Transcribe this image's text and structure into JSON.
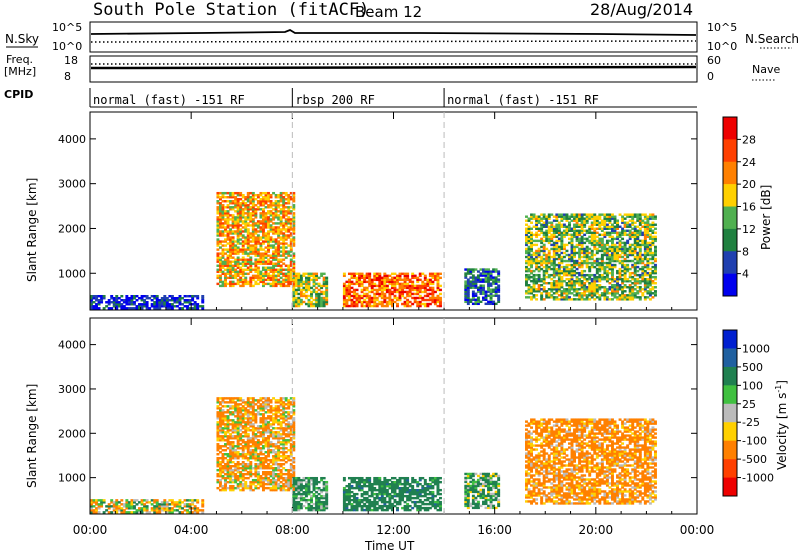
{
  "header": {
    "title": "South Pole Station (fitACF)",
    "beam": "Beam 12",
    "date": "28/Aug/2014"
  },
  "top_panels": {
    "nsky_label": "N.Sky",
    "nsearch_label": "N.Search",
    "nsky_ticks": [
      "10^5",
      "10^0"
    ],
    "nsearch_ticks": [
      "10^5",
      "10^0"
    ],
    "freq_label_1": "Freq.",
    "freq_label_2": "[MHz]",
    "freq_ticks": [
      "18",
      "8"
    ],
    "nave_label": "Nave",
    "nave_ticks": [
      "60",
      "0"
    ],
    "cpid_label": "CPID",
    "cpid_segments": [
      {
        "label": "normal (fast) -151 RF",
        "start_hour": 0,
        "end_hour": 8
      },
      {
        "label": "rbsp 200 RF",
        "start_hour": 8,
        "end_hour": 14
      },
      {
        "label": "normal (fast) -151 RF",
        "start_hour": 14,
        "end_hour": 24
      }
    ]
  },
  "power_panel": {
    "ylabel": "Slant Range [km]",
    "yticks": [
      "1000",
      "2000",
      "3000",
      "4000"
    ],
    "colorbar_label": "Power [dB]",
    "colorbar_ticks": [
      "4",
      "8",
      "12",
      "16",
      "20",
      "24",
      "28"
    ],
    "colors": [
      "#0000ee",
      "#2040b0",
      "#208040",
      "#50b050",
      "#ffd000",
      "#ff8000",
      "#ff4000",
      "#ee0000"
    ]
  },
  "velocity_panel": {
    "ylabel": "Slant Range [km]",
    "yticks": [
      "1000",
      "2000",
      "3000",
      "4000"
    ],
    "colorbar_label": "Velocity [m s",
    "colorbar_sup": "-1",
    "colorbar_label_end": "]",
    "colorbar_ticks": [
      "1000",
      "500",
      "100",
      "25",
      "-25",
      "-100",
      "-500",
      "-1000"
    ],
    "colors": [
      "#0020d0",
      "#2060a0",
      "#208050",
      "#40c040",
      "#bbbbbb",
      "#ffd000",
      "#ff8000",
      "#ff4000",
      "#ee0000"
    ]
  },
  "x_axis": {
    "label": "Time UT",
    "ticks": [
      "00:00",
      "04:00",
      "08:00",
      "12:00",
      "16:00",
      "20:00",
      "00:00"
    ]
  },
  "chart_data": {
    "type": "heatmap",
    "title": "South Pole Station (fitACF)",
    "xlabel": "Time UT",
    "ylabel": "Slant Range [km]",
    "x_range_hours": [
      0,
      24
    ],
    "y_range_km": [
      180,
      4600
    ],
    "mode_boundaries_hours": [
      8,
      14
    ],
    "power_colorbar_db": [
      4,
      8,
      12,
      16,
      20,
      24,
      28
    ],
    "velocity_colorbar_ms": [
      1000,
      500,
      100,
      25,
      -25,
      -100,
      -500,
      -1000
    ],
    "regions": [
      {
        "t0": 5.0,
        "t1": 8.0,
        "r0": 700,
        "r1": 2800,
        "power_db": 22,
        "velocity_ms": -150
      },
      {
        "t0": 8.0,
        "t1": 9.3,
        "r0": 250,
        "r1": 1000,
        "power_db": 18,
        "velocity_ms": 200
      },
      {
        "t0": 10.0,
        "t1": 13.8,
        "r0": 250,
        "r1": 1000,
        "power_db": 26,
        "velocity_ms": 300
      },
      {
        "t0": 14.8,
        "t1": 16.2,
        "r0": 300,
        "r1": 1100,
        "power_db": 10,
        "velocity_ms": 150
      },
      {
        "t0": 17.2,
        "t1": 22.4,
        "r0": 400,
        "r1": 2300,
        "power_db": 16,
        "velocity_ms": -200
      },
      {
        "t0": 0.0,
        "t1": 4.5,
        "r0": 200,
        "r1": 500,
        "power_db": 6,
        "velocity_ms": -50
      }
    ]
  }
}
